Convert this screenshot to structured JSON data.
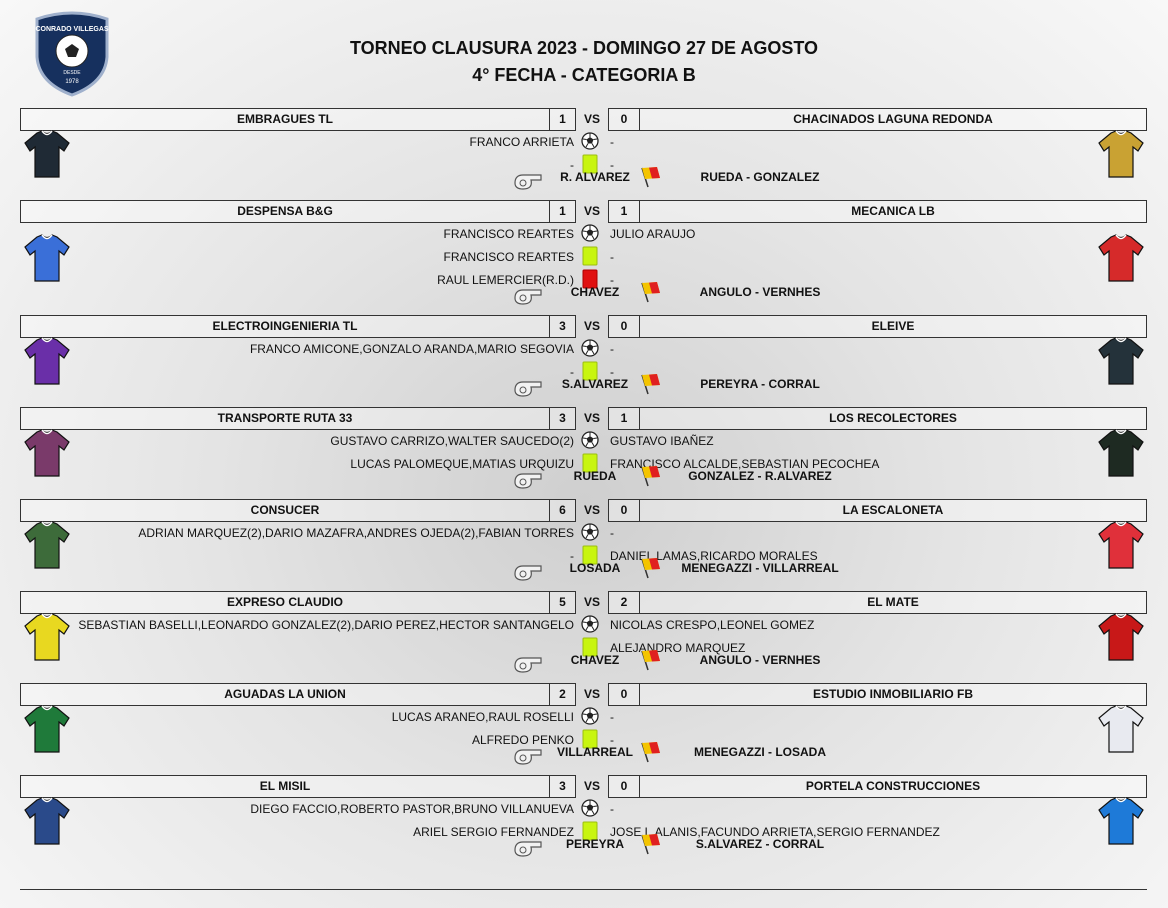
{
  "header": {
    "title": "TORNEO CLAUSURA 2023 - DOMINGO 27 DE AGOSTO",
    "subtitle": "4° FECHA - CATEGORIA B",
    "logo_name": "CONRADO VILLEGAS",
    "logo_since": "DESDE",
    "logo_year": "1978"
  },
  "matches": [
    {
      "home": "EMBRAGUES TL",
      "home_score": "1",
      "vs": "VS",
      "away_score": "0",
      "away": "CHACINADOS LAGUNA REDONDA",
      "home_shirt": "#1f2a35",
      "away_shirt": "#c9a233",
      "events": [
        {
          "type": "goal",
          "home": "FRANCO ARRIETA",
          "away": "-"
        },
        {
          "type": "yellow",
          "home": "-",
          "away": "-"
        }
      ],
      "referee": "R. ALVAREZ",
      "assistants": "RUEDA - GONZALEZ"
    },
    {
      "home": "DESPENSA B&G",
      "home_score": "1",
      "vs": "VS",
      "away_score": "1",
      "away": "MECANICA LB",
      "home_shirt": "#3a6fd8",
      "away_shirt": "#d62a2a",
      "events": [
        {
          "type": "goal",
          "home": "FRANCISCO REARTES",
          "away": "JULIO ARAUJO"
        },
        {
          "type": "yellow",
          "home": "FRANCISCO REARTES",
          "away": "-"
        },
        {
          "type": "red",
          "home": "RAUL LEMERCIER(R.D.)",
          "away": "-"
        }
      ],
      "referee": "CHAVEZ",
      "assistants": "ANGULO - VERNHES"
    },
    {
      "home": "ELECTROINGENIERIA TL",
      "home_score": "3",
      "vs": "VS",
      "away_score": "0",
      "away": "ELEIVE",
      "home_shirt": "#6a2fa8",
      "away_shirt": "#24323a",
      "events": [
        {
          "type": "goal",
          "home": "FRANCO AMICONE,GONZALO ARANDA,MARIO SEGOVIA",
          "away": "-"
        },
        {
          "type": "yellow",
          "home": "-",
          "away": "-"
        }
      ],
      "referee": "S.ALVAREZ",
      "assistants": "PEREYRA - CORRAL"
    },
    {
      "home": "TRANSPORTE RUTA 33",
      "home_score": "3",
      "vs": "VS",
      "away_score": "1",
      "away": "LOS RECOLECTORES",
      "home_shirt": "#7a3a6a",
      "away_shirt": "#1e2a22",
      "events": [
        {
          "type": "goal",
          "home": "GUSTAVO CARRIZO,WALTER SAUCEDO(2)",
          "away": "GUSTAVO IBAÑEZ"
        },
        {
          "type": "yellow",
          "home": "LUCAS PALOMEQUE,MATIAS URQUIZU",
          "away": "FRANCISCO ALCALDE,SEBASTIAN PECOCHEA"
        }
      ],
      "referee": "RUEDA",
      "assistants": "GONZALEZ - R.ALVAREZ"
    },
    {
      "home": "CONSUCER",
      "home_score": "6",
      "vs": "VS",
      "away_score": "0",
      "away": "LA ESCALONETA",
      "home_shirt": "#3d6b3a",
      "away_shirt": "#e0303a",
      "events": [
        {
          "type": "goal",
          "home": "ADRIAN MARQUEZ(2),DARIO MAZAFRA,ANDRES OJEDA(2),FABIAN TORRES",
          "away": "-"
        },
        {
          "type": "yellow",
          "home": "-",
          "away": "DANIEL LAMAS,RICARDO MORALES"
        }
      ],
      "referee": "LOSADA",
      "assistants": "MENEGAZZI - VILLARREAL"
    },
    {
      "home": "EXPRESO CLAUDIO",
      "home_score": "5",
      "vs": "VS",
      "away_score": "2",
      "away": "EL MATE",
      "home_shirt": "#e8d820",
      "away_shirt": "#c81818",
      "events": [
        {
          "type": "goal",
          "home": "SEBASTIAN BASELLI,LEONARDO GONZALEZ(2),DARIO PEREZ,HECTOR SANTANGELO",
          "away": "NICOLAS CRESPO,LEONEL GOMEZ"
        },
        {
          "type": "yellow",
          "away": "ALEJANDRO MARQUEZ"
        }
      ],
      "referee": "CHAVEZ",
      "assistants": "ANGULO - VERNHES"
    },
    {
      "home": "AGUADAS LA UNION",
      "home_score": "2",
      "vs": "VS",
      "away_score": "0",
      "away": "ESTUDIO INMOBILIARIO FB",
      "home_shirt": "#1f7a3a",
      "away_shirt": "#e8eaf0",
      "events": [
        {
          "type": "goal",
          "home": "LUCAS ARANEO,RAUL ROSELLI",
          "away": "-"
        },
        {
          "type": "yellow",
          "home": "ALFREDO PENKO",
          "away": "-"
        }
      ],
      "referee": "VILLARREAL",
      "assistants": "MENEGAZZI - LOSADA"
    },
    {
      "home": "EL MISIL",
      "home_score": "3",
      "vs": "VS",
      "away_score": "0",
      "away": "PORTELA CONSTRUCCIONES",
      "home_shirt": "#2a4a8a",
      "away_shirt": "#1e7ad8",
      "events": [
        {
          "type": "goal",
          "home": "DIEGO FACCIO,ROBERTO PASTOR,BRUNO VILLANUEVA",
          "away": "-"
        },
        {
          "type": "yellow",
          "home": "ARIEL SERGIO FERNANDEZ",
          "away": "JOSE L.ALANIS,FACUNDO ARRIETA,SERGIO FERNANDEZ"
        }
      ],
      "referee": "PEREYRA",
      "assistants": "S.ALVAREZ - CORRAL"
    }
  ]
}
